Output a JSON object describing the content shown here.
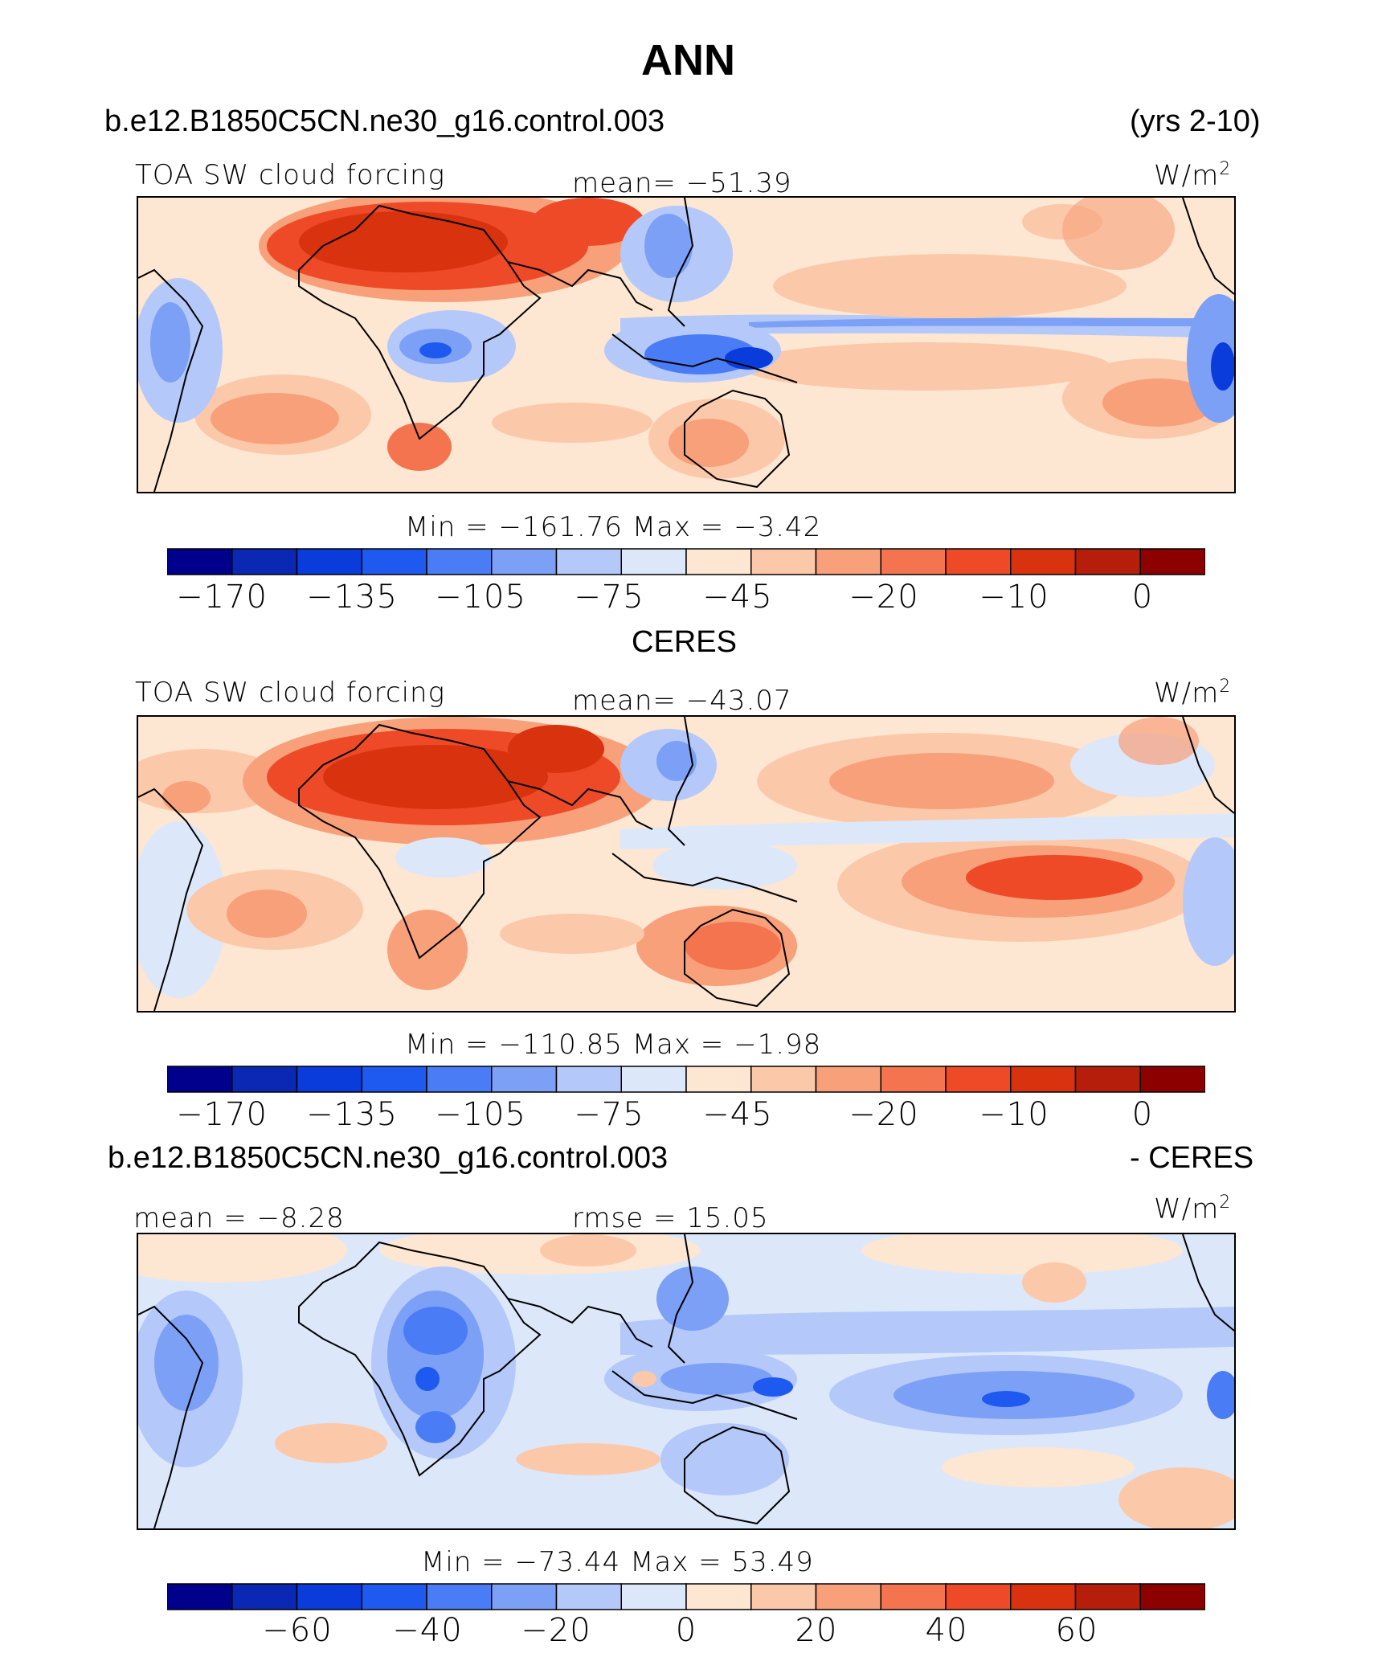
{
  "title": "ANN",
  "case_name": "b.e12.B1850C5CN.ne30_g16.control.003",
  "years": "(yrs 2-10)",
  "panels": [
    {
      "id": "model",
      "variable": "TOA SW cloud forcing",
      "mean_text": "mean= −51.39",
      "units": "W/m",
      "units_sup": "2",
      "stats": "Min  =  −161.76  Max  =   −3.42",
      "colorbar_ticks": [
        "−170",
        "−135",
        "−105",
        "−75",
        "−45",
        "−20",
        "−10",
        "0"
      ]
    },
    {
      "id": "obs",
      "heading": "CERES",
      "variable": "TOA SW cloud forcing",
      "mean_text": "mean= −43.07",
      "units": "W/m",
      "units_sup": "2",
      "stats": "Min  =  −110.85  Max  =   −1.98",
      "colorbar_ticks": [
        "−170",
        "−135",
        "−105",
        "−75",
        "−45",
        "−20",
        "−10",
        "0"
      ]
    },
    {
      "id": "diff",
      "heading_left": "b.e12.B1850C5CN.ne30_g16.control.003",
      "heading_right": "- CERES",
      "mean_text": "mean  =   −8.28",
      "rmse_text": "rmse  =   15.05",
      "units": "W/m",
      "units_sup": "2",
      "stats": "Min  =  −73.44  Max  =   53.49",
      "colorbar_ticks": [
        "−60",
        "−40",
        "−20",
        "0",
        "20",
        "40",
        "60"
      ]
    }
  ],
  "colorbar_colors": [
    "#00008c",
    "#0a28b4",
    "#0a3cdc",
    "#1e5af0",
    "#4a7cf5",
    "#7ca0f5",
    "#b4c8fa",
    "#dce8fa",
    "#fde6d2",
    "#fcc8aa",
    "#f7a07a",
    "#f47450",
    "#ee4a28",
    "#d8320e",
    "#b41e0a",
    "#8c0000"
  ]
}
